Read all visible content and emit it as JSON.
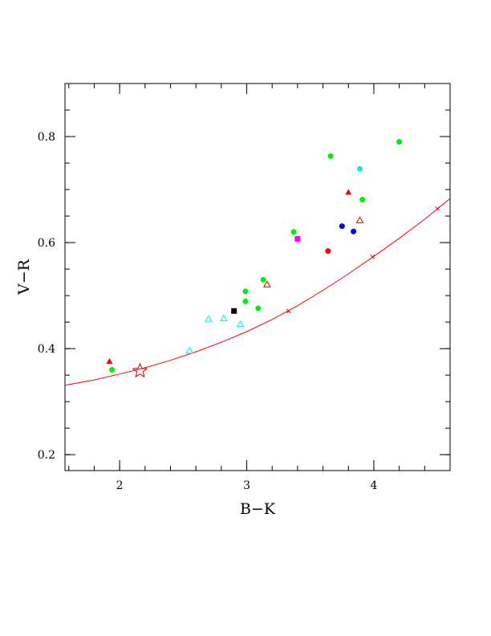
{
  "chart_data": {
    "type": "scatter",
    "xlabel": "B−K",
    "ylabel": "V−R",
    "xlim": [
      1.57,
      4.6
    ],
    "ylim": [
      0.17,
      0.9
    ],
    "x_ticks": [
      {
        "value": 2,
        "label": "2"
      },
      {
        "value": 3,
        "label": "3"
      },
      {
        "value": 4,
        "label": "4"
      }
    ],
    "y_ticks": [
      {
        "value": 0.2,
        "label": "0.2"
      },
      {
        "value": 0.4,
        "label": "0.4"
      },
      {
        "value": 0.6,
        "label": "0.6"
      },
      {
        "value": 0.8,
        "label": "0.8"
      }
    ],
    "x_minor_step": 0.2,
    "y_minor_step": 0.05,
    "grid": false,
    "curve": {
      "color": "#ff0000",
      "x": [
        1.57,
        1.8,
        2.0,
        2.2,
        2.4,
        2.6,
        2.8,
        3.0,
        3.2,
        3.4,
        3.6,
        3.8,
        4.0,
        4.2,
        4.4,
        4.6
      ],
      "y": [
        0.331,
        0.341,
        0.352,
        0.364,
        0.378,
        0.394,
        0.412,
        0.432,
        0.455,
        0.481,
        0.51,
        0.541,
        0.574,
        0.608,
        0.644,
        0.683
      ],
      "cross_markers": [
        {
          "x": 3.33,
          "y": 0.471
        },
        {
          "x": 3.99,
          "y": 0.573
        },
        {
          "x": 4.5,
          "y": 0.664
        }
      ]
    },
    "star_marker": {
      "x": 2.16,
      "y": 0.358,
      "color": "#cc0000"
    },
    "points": [
      {
        "x": 1.92,
        "y": 0.376,
        "marker": "triangle-filled",
        "color": "#ff0000"
      },
      {
        "x": 1.94,
        "y": 0.36,
        "marker": "circle-filled",
        "color": "#00ee00"
      },
      {
        "x": 2.55,
        "y": 0.396,
        "marker": "triangle-open",
        "color": "#00eeee"
      },
      {
        "x": 2.7,
        "y": 0.456,
        "marker": "triangle-open",
        "color": "#00eeee"
      },
      {
        "x": 2.82,
        "y": 0.457,
        "marker": "triangle-open",
        "color": "#00eeee"
      },
      {
        "x": 2.95,
        "y": 0.446,
        "marker": "triangle-open",
        "color": "#00eeee"
      },
      {
        "x": 2.9,
        "y": 0.471,
        "marker": "square-filled",
        "color": "#000000"
      },
      {
        "x": 2.99,
        "y": 0.508,
        "marker": "circle-filled",
        "color": "#00ee00"
      },
      {
        "x": 2.99,
        "y": 0.489,
        "marker": "circle-filled",
        "color": "#00ee00"
      },
      {
        "x": 3.09,
        "y": 0.476,
        "marker": "circle-filled",
        "color": "#00ee00"
      },
      {
        "x": 3.13,
        "y": 0.53,
        "marker": "circle-filled",
        "color": "#00ee00"
      },
      {
        "x": 3.16,
        "y": 0.521,
        "marker": "triangle-open",
        "color": "#cc0000"
      },
      {
        "x": 3.37,
        "y": 0.62,
        "marker": "circle-filled",
        "color": "#00ee00"
      },
      {
        "x": 3.4,
        "y": 0.607,
        "marker": "square-filled",
        "color": "#ff00ff"
      },
      {
        "x": 3.64,
        "y": 0.584,
        "marker": "circle-filled",
        "color": "#ff0000"
      },
      {
        "x": 3.66,
        "y": 0.763,
        "marker": "circle-filled",
        "color": "#00ee00"
      },
      {
        "x": 3.75,
        "y": 0.631,
        "marker": "circle-filled",
        "color": "#0000ee"
      },
      {
        "x": 3.8,
        "y": 0.695,
        "marker": "triangle-filled",
        "color": "#ff0000"
      },
      {
        "x": 3.84,
        "y": 0.621,
        "marker": "circle-filled",
        "color": "#0000ee"
      },
      {
        "x": 3.89,
        "y": 0.739,
        "marker": "circle-filled",
        "color": "#00eeee"
      },
      {
        "x": 3.89,
        "y": 0.642,
        "marker": "triangle-open",
        "color": "#cc0000"
      },
      {
        "x": 3.91,
        "y": 0.681,
        "marker": "circle-filled",
        "color": "#00ee00"
      },
      {
        "x": 4.2,
        "y": 0.79,
        "marker": "circle-filled",
        "color": "#00ee00"
      }
    ]
  }
}
